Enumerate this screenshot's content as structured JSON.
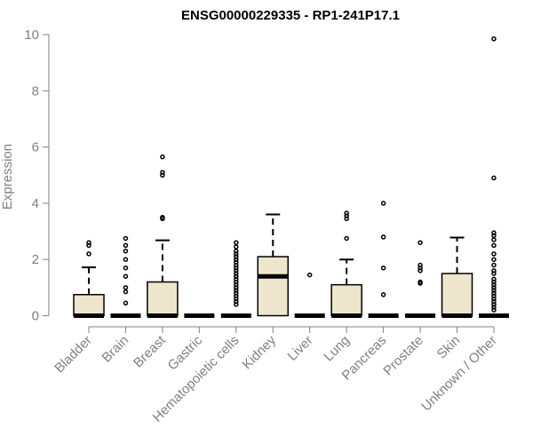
{
  "chart_data": {
    "type": "box",
    "title": "ENSG00000229335 - RP1-241P17.1",
    "xlabel": "",
    "ylabel": "Expression",
    "ylim": [
      0,
      10
    ],
    "yticks": [
      0,
      2,
      4,
      6,
      8,
      10
    ],
    "grid": false,
    "box_color": "#ede6cc",
    "axis_color": "#808080",
    "categories": [
      "Bladder",
      "Brain",
      "Breast",
      "Gastric",
      "Hematopoietic cells",
      "Kidney",
      "Liver",
      "Lung",
      "Pancreas",
      "Prostate",
      "Skin",
      "Unknown / Other"
    ],
    "boxes": [
      {
        "q1": 0,
        "median": 0,
        "q3": 0.75,
        "whisker_low": 0,
        "whisker_high": 1.72,
        "outliers": [
          2.2,
          2.5,
          2.6
        ]
      },
      {
        "q1": 0,
        "median": 0,
        "q3": 0,
        "whisker_low": 0,
        "whisker_high": 0,
        "outliers": [
          0.45,
          0.85,
          1.0,
          1.4,
          1.7,
          2.0,
          2.3,
          2.5,
          2.75
        ]
      },
      {
        "q1": 0,
        "median": 0,
        "q3": 1.2,
        "whisker_low": 0,
        "whisker_high": 2.68,
        "outliers": [
          3.45,
          3.5,
          5.0,
          5.1,
          5.65
        ]
      },
      {
        "q1": 0,
        "median": 0,
        "q3": 0,
        "whisker_low": 0,
        "whisker_high": 0,
        "outliers": []
      },
      {
        "q1": 0,
        "median": 0,
        "q3": 0,
        "whisker_low": 0,
        "whisker_high": 0,
        "outliers": [
          0.4,
          0.5,
          0.6,
          0.7,
          0.8,
          0.9,
          1.0,
          1.1,
          1.2,
          1.3,
          1.4,
          1.5,
          1.6,
          1.7,
          1.8,
          1.9,
          2.0,
          2.1,
          2.2,
          2.3,
          2.45,
          2.6
        ]
      },
      {
        "q1": 0,
        "median": 1.4,
        "q3": 2.1,
        "whisker_low": 0,
        "whisker_high": 3.6,
        "outliers": []
      },
      {
        "q1": 0,
        "median": 0,
        "q3": 0,
        "whisker_low": 0,
        "whisker_high": 0,
        "outliers": [
          1.45
        ]
      },
      {
        "q1": 0,
        "median": 0,
        "q3": 1.1,
        "whisker_low": 0,
        "whisker_high": 2.0,
        "outliers": [
          2.75,
          3.45,
          3.55,
          3.65
        ]
      },
      {
        "q1": 0,
        "median": 0,
        "q3": 0,
        "whisker_low": 0,
        "whisker_high": 0,
        "outliers": [
          0.75,
          1.7,
          2.8,
          4.0
        ]
      },
      {
        "q1": 0,
        "median": 0,
        "q3": 0,
        "whisker_low": 0,
        "whisker_high": 0,
        "outliers": [
          1.15,
          1.2,
          1.6,
          1.7,
          1.8,
          2.6
        ]
      },
      {
        "q1": 0,
        "median": 0,
        "q3": 1.5,
        "whisker_low": 0,
        "whisker_high": 2.78,
        "outliers": []
      },
      {
        "q1": 0,
        "median": 0,
        "q3": 0,
        "whisker_low": 0,
        "whisker_high": 0,
        "outliers": [
          0.2,
          0.3,
          0.4,
          0.5,
          0.6,
          0.7,
          0.8,
          0.9,
          1.0,
          1.1,
          1.2,
          1.3,
          1.5,
          1.6,
          1.8,
          2.0,
          2.2,
          2.5,
          2.7,
          2.85,
          2.95,
          4.9,
          9.85
        ]
      }
    ]
  }
}
